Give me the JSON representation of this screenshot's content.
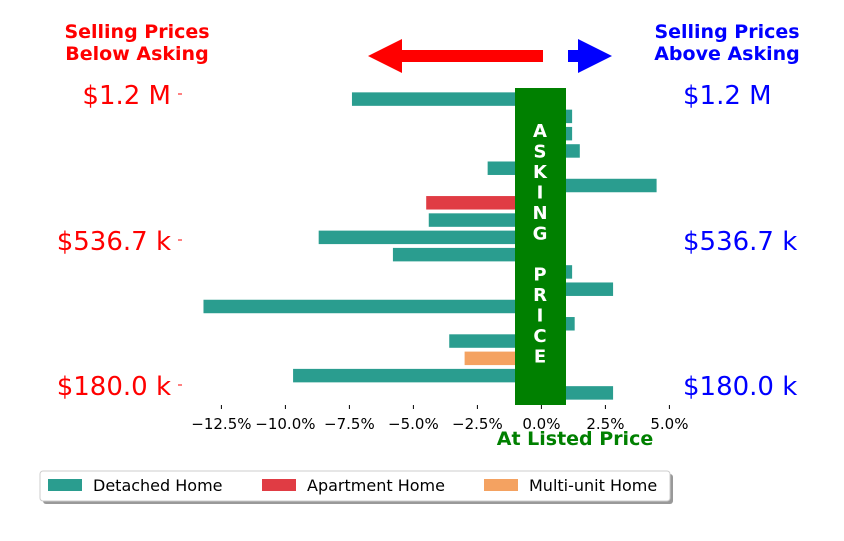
{
  "chart_data": {
    "type": "bar",
    "orientation": "horizontal",
    "xlim": [
      -0.14,
      0.06
    ],
    "x_ticks": [
      -0.125,
      -0.1,
      -0.075,
      -0.05,
      -0.025,
      0.0,
      0.025,
      0.05
    ],
    "x_tick_labels": [
      "−12.5%",
      "−10.0%",
      "−7.5%",
      "−5.0%",
      "−2.5%",
      "0.0%",
      "2.5%",
      "5.0%"
    ],
    "xlabel": "At Listed Price",
    "left_header": [
      "Selling Prices",
      "Below Asking"
    ],
    "right_header": [
      "Selling Prices",
      "Above Asking"
    ],
    "price_labels_left": [
      "$1.2 M",
      "$536.7 k",
      "$180.0 k"
    ],
    "price_labels_right": [
      "$1.2 M",
      "$536.7 k",
      "$180.0 k"
    ],
    "asking_price_label": [
      "A",
      "S",
      "K",
      "I",
      "N",
      "G",
      "",
      "P",
      "R",
      "I",
      "C",
      "E"
    ],
    "series": [
      {
        "name": "Detached Home",
        "color": "#2a9d8f"
      },
      {
        "name": "Apartment Home",
        "color": "#e03c44"
      },
      {
        "name": "Multi-unit Home",
        "color": "#f4a261"
      }
    ],
    "bars": [
      {
        "value": -0.074,
        "series": 0
      },
      {
        "value": 0.012,
        "series": 0
      },
      {
        "value": 0.012,
        "series": 0
      },
      {
        "value": 0.015,
        "series": 0
      },
      {
        "value": -0.021,
        "series": 0
      },
      {
        "value": 0.045,
        "series": 0
      },
      {
        "value": -0.045,
        "series": 1
      },
      {
        "value": -0.044,
        "series": 0
      },
      {
        "value": -0.087,
        "series": 0
      },
      {
        "value": -0.058,
        "series": 0
      },
      {
        "value": 0.012,
        "series": 0
      },
      {
        "value": 0.028,
        "series": 0
      },
      {
        "value": -0.132,
        "series": 0
      },
      {
        "value": 0.013,
        "series": 0
      },
      {
        "value": -0.036,
        "series": 0
      },
      {
        "value": -0.03,
        "series": 2
      },
      {
        "value": -0.097,
        "series": 0
      },
      {
        "value": 0.028,
        "series": 0
      }
    ],
    "legend_position": "bottom-left",
    "colors": {
      "below": "#ff0000",
      "above": "#0000ff",
      "asking": "#008000",
      "asking_text": "#ffffff"
    }
  }
}
